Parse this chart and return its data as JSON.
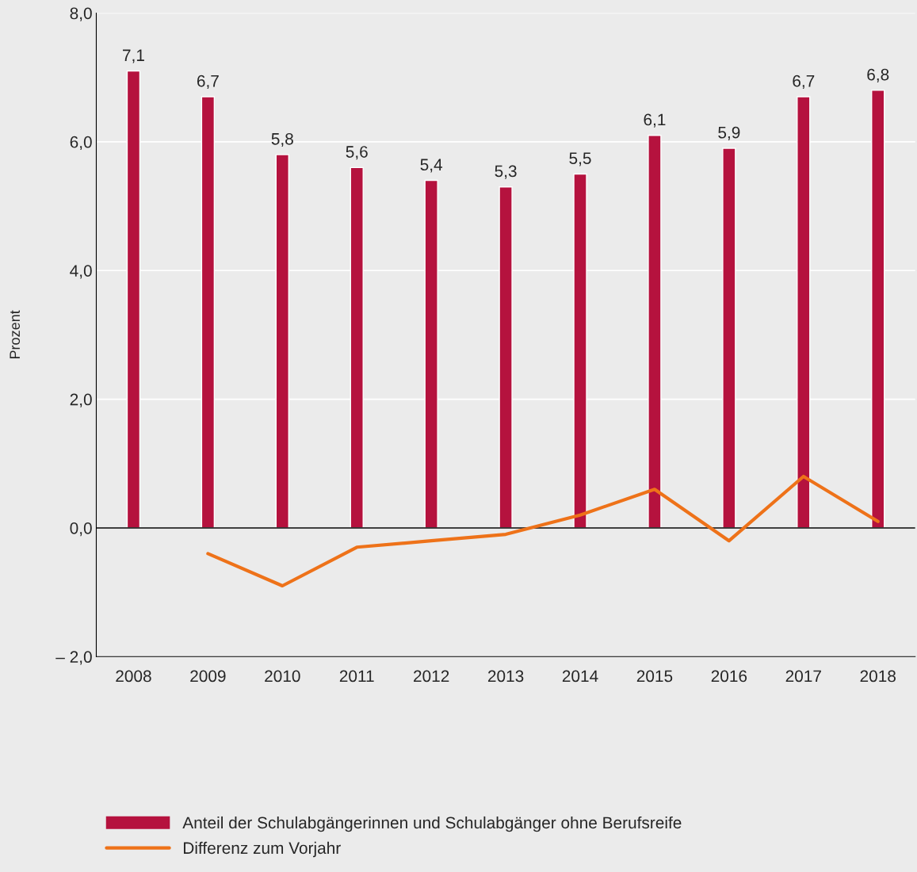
{
  "chart_data": {
    "type": "bar",
    "ylabel": "Prozent",
    "categories": [
      "2008",
      "2009",
      "2010",
      "2011",
      "2012",
      "2013",
      "2014",
      "2015",
      "2016",
      "2017",
      "2018"
    ],
    "series": [
      {
        "name": "Anteil der Schulabgängerinnen und Schulabgänger ohne Berufsreife",
        "color": "#b5123e",
        "values": [
          7.1,
          6.7,
          5.8,
          5.6,
          5.4,
          5.3,
          5.5,
          6.1,
          5.9,
          6.7,
          6.8
        ],
        "value_labels": [
          "7,1",
          "6,7",
          "5,8",
          "5,6",
          "5,4",
          "5,3",
          "5,5",
          "6,1",
          "5,9",
          "6,7",
          "6,8"
        ]
      },
      {
        "name": "Differenz zum Vorjahr",
        "type": "line",
        "color": "#ee7219",
        "values": [
          null,
          -0.4,
          -0.9,
          -0.3,
          -0.2,
          -0.1,
          0.2,
          0.6,
          -0.2,
          0.8,
          0.1
        ]
      }
    ],
    "ylim": [
      -2,
      8
    ],
    "yticks": [
      {
        "value": -2,
        "label": "– 2,0"
      },
      {
        "value": 0,
        "label": "0,0"
      },
      {
        "value": 2,
        "label": "2,0"
      },
      {
        "value": 4,
        "label": "4,0"
      },
      {
        "value": 6,
        "label": "6,0"
      },
      {
        "value": 8,
        "label": "8,0"
      }
    ],
    "grid": "y",
    "legend": "bottom",
    "ref_lines": [
      {
        "axis": "y",
        "value": 0,
        "color": "#000000"
      }
    ]
  }
}
